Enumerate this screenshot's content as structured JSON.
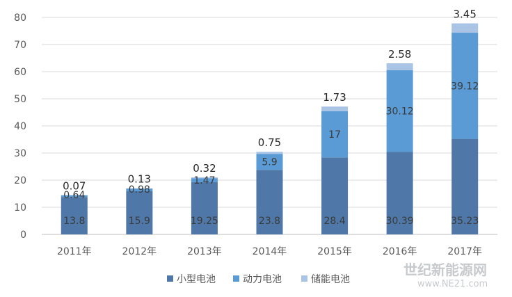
{
  "chart_data": {
    "type": "bar",
    "stacked": true,
    "categories": [
      "2011年",
      "2012年",
      "2013年",
      "2014年",
      "2015年",
      "2016年",
      "2017年"
    ],
    "series": [
      {
        "name": "小型电池",
        "color": "#4f78a8",
        "values": [
          13.8,
          15.9,
          19.25,
          23.8,
          28.4,
          30.39,
          35.23
        ]
      },
      {
        "name": "动力电池",
        "color": "#5b9bd5",
        "values": [
          0.64,
          0.98,
          1.47,
          5.9,
          17,
          30.12,
          39.12
        ]
      },
      {
        "name": "储能电池",
        "color": "#a9c4e4",
        "values": [
          0.07,
          0.13,
          0.32,
          0.75,
          1.73,
          2.58,
          3.45
        ]
      }
    ],
    "ylim": [
      0,
      80
    ],
    "yticks": [
      0,
      10,
      20,
      30,
      40,
      50,
      60,
      70,
      80
    ],
    "grid": true,
    "legend_position": "bottom",
    "title": "",
    "xlabel": "",
    "ylabel": ""
  },
  "watermark": {
    "text": "世纪新能源网",
    "subtext": "www.NE21.com"
  }
}
